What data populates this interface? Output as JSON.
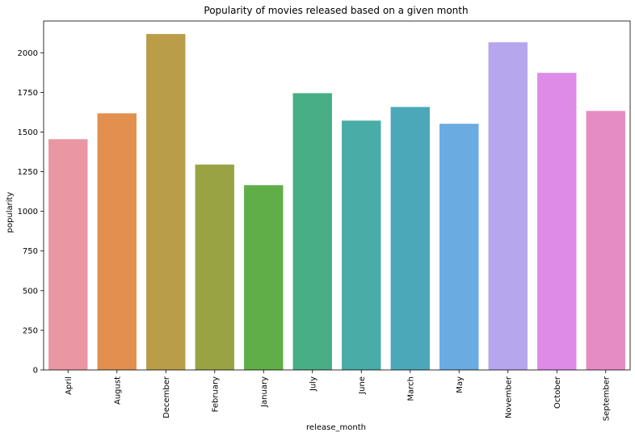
{
  "chart_data": {
    "type": "bar",
    "title": "Popularity of movies released based on a given month",
    "xlabel": "release_month",
    "ylabel": "popularity",
    "categories": [
      "April",
      "August",
      "December",
      "February",
      "January",
      "July",
      "June",
      "March",
      "May",
      "November",
      "October",
      "September"
    ],
    "values": [
      1455,
      1618,
      2118,
      1295,
      1165,
      1745,
      1572,
      1658,
      1552,
      2066,
      1873,
      1633
    ],
    "colors": [
      "#ea96a3",
      "#e28f4f",
      "#b99d49",
      "#9aa344",
      "#60ae47",
      "#48ae85",
      "#49aca6",
      "#4aa8b9",
      "#6aabe1",
      "#b6a6ed",
      "#dd8be7",
      "#e68cc5"
    ],
    "ylim": [
      0,
      2200
    ],
    "yticks": [
      0,
      250,
      500,
      750,
      1000,
      1250,
      1500,
      1750,
      2000
    ],
    "grid": false,
    "legend": "none"
  }
}
